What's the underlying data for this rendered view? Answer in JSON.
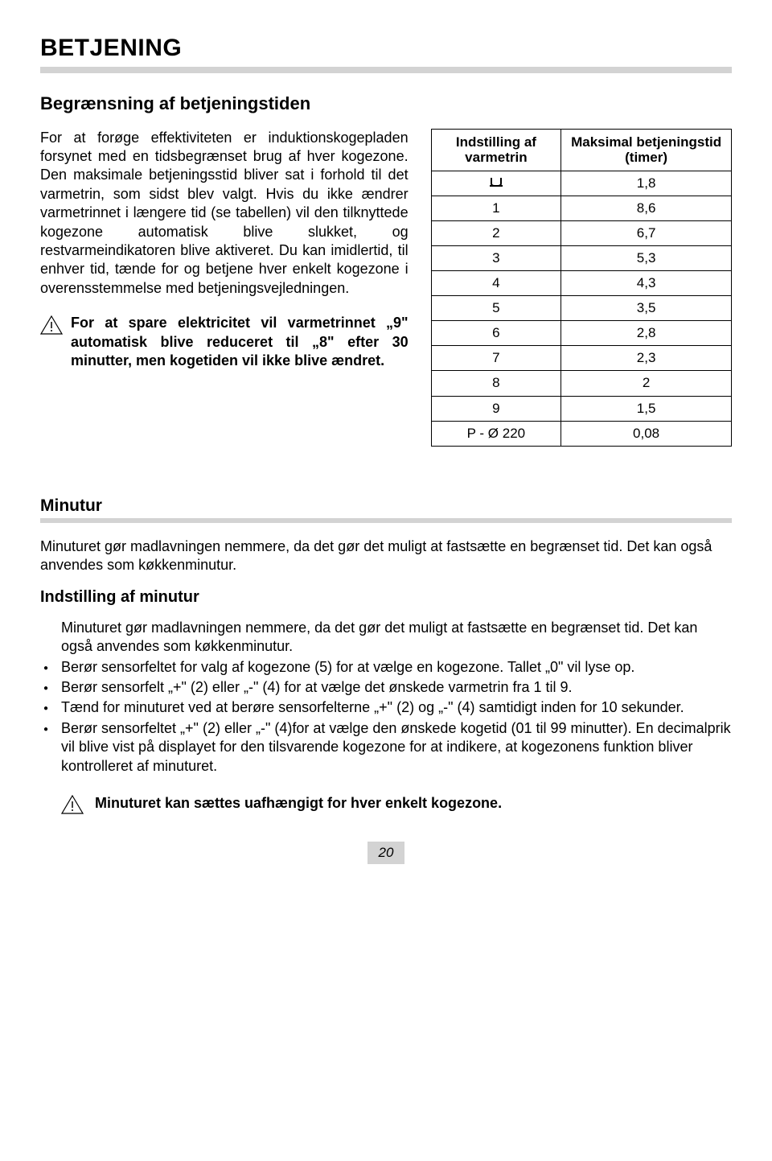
{
  "page": {
    "title": "BETJENING",
    "section1_heading": "Begrænsning af betjeningstiden",
    "section1_body": "For at forøge effektiviteten er induktionskogepladen forsynet med en tidsbegrænset brug af hver kogezone. Den maksimale betjeningsstid bliver sat i forhold til det varmetrin, som sidst blev valgt.\nHvis du ikke ændrer varmetrinnet i længere tid (se tabellen) vil den tilknyttede kogezone automatisk blive slukket, og restvarmeindikatoren blive aktiveret. Du kan imidlertid, til enhver tid, tænde for og betjene hver enkelt kogezone i overensstemmelse med betjeningsvejledningen.",
    "warning1": "For at spare elektricitet vil varmetrinnet „9\" automatisk blive reduceret til „8\" efter 30 minutter, men kogetiden vil ikke blive ændret.",
    "table": {
      "col1_header": "Indstilling af varmetrin",
      "col2_header": "Maksimal betjeningstid (timer)",
      "rows": [
        {
          "c1_icon": true,
          "c2": "1,8"
        },
        {
          "c1": "1",
          "c2": "8,6"
        },
        {
          "c1": "2",
          "c2": "6,7"
        },
        {
          "c1": "3",
          "c2": "5,3"
        },
        {
          "c1": "4",
          "c2": "4,3"
        },
        {
          "c1": "5",
          "c2": "3,5"
        },
        {
          "c1": "6",
          "c2": "2,8"
        },
        {
          "c1": "7",
          "c2": "2,3"
        },
        {
          "c1": "8",
          "c2": "2"
        },
        {
          "c1": "9",
          "c2": "1,5"
        },
        {
          "c1": "P - Ø 220",
          "c2": "0,08"
        }
      ]
    },
    "section2_heading": "Minutur",
    "section2_intro": "Minuturet gør madlavningen nemmere, da det gør det muligt at fastsætte en begrænset tid. Det kan også anvendes som køkkenminutur.",
    "section2_sub": "Indstilling af minutur",
    "instructions": [
      {
        "bulleted": false,
        "text": "Minuturet gør madlavningen nemmere, da det gør det muligt at fastsætte en begrænset tid. Det kan også anvendes som køkkenminutur."
      },
      {
        "bulleted": true,
        "text": "Berør sensorfeltet for valg af kogezone (5) for at vælge en kogezone. Tallet „0\" vil lyse op."
      },
      {
        "bulleted": true,
        "text": "Berør sensorfelt „+\" (2) eller „-\" (4) for at vælge det ønskede varmetrin fra 1 til 9."
      },
      {
        "bulleted": true,
        "text": "Tænd for minuturet ved at berøre sensorfelterne „+\" (2) og „-\" (4) samtidigt inden for 10 sekunder."
      },
      {
        "bulleted": true,
        "text": "Berør sensorfeltet „+\" (2) eller „-\" (4)for at vælge den ønskede kogetid (01 til 99 minutter). En decimalprik vil blive vist på displayet for den tilsvarende kogezone for at indikere, at kogezonens funktion bliver kontrolleret af minuturet."
      }
    ],
    "warning2": "Minuturet kan sættes uafhængigt for hver enkelt kogezone.",
    "page_number": "20"
  },
  "colors": {
    "bar": "#d3d3d3",
    "text": "#000000",
    "bg": "#ffffff"
  }
}
